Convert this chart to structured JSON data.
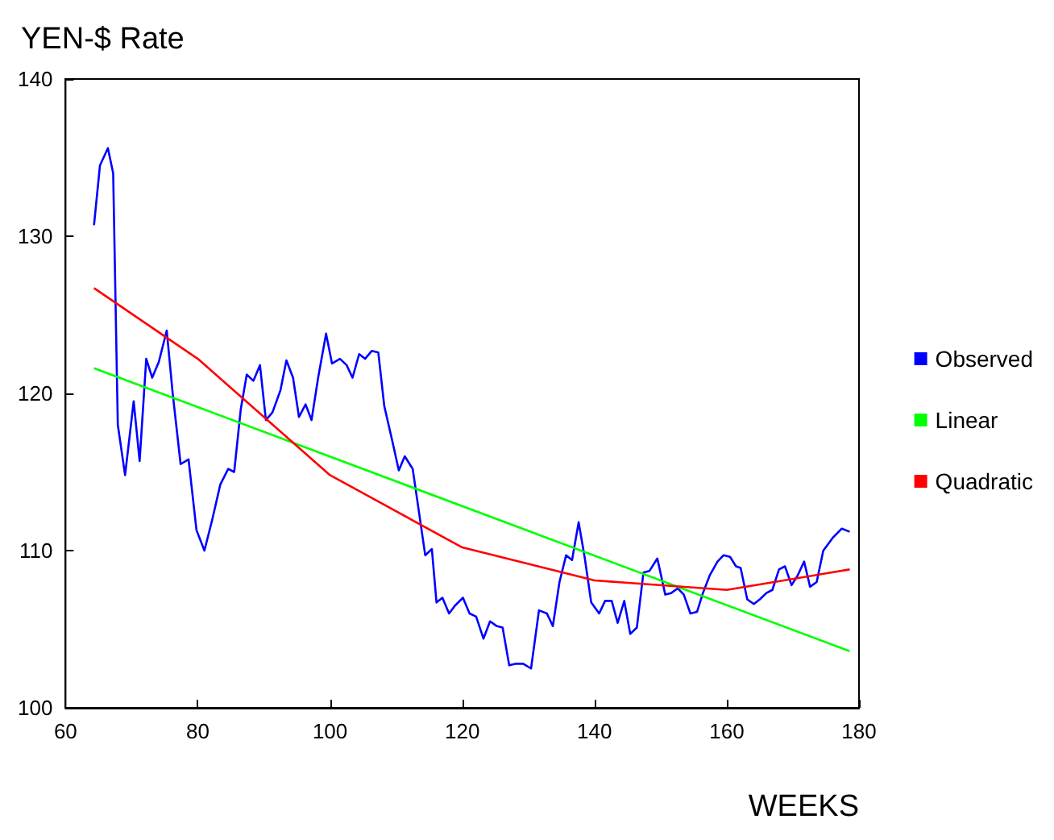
{
  "chart_data": {
    "type": "line",
    "title": "YEN-$ Rate",
    "xlabel": "WEEKS",
    "xlim": [
      60,
      180
    ],
    "xticks": [
      60,
      80,
      100,
      120,
      140,
      160,
      180
    ],
    "ylim": [
      100,
      140
    ],
    "yticks": [
      100,
      110,
      120,
      130,
      140
    ],
    "grid": false,
    "legend": "right",
    "marker": "none",
    "line_style": "solid",
    "series": [
      {
        "name": "Observed",
        "color": "#0000ff",
        "x": [
          64.3,
          65.2,
          66.4,
          67.2,
          67.9,
          69,
          70.3,
          71.2,
          72.2,
          73.1,
          74.1,
          75.3,
          76.2,
          77.4,
          78.6,
          79.8,
          81,
          82.2,
          83.4,
          84.6,
          85.5,
          86.5,
          87.4,
          88.4,
          89.4,
          90.3,
          91.3,
          92.5,
          93.4,
          94.4,
          95.3,
          96.3,
          97.2,
          98.2,
          99.4,
          100.3,
          101.5,
          102.5,
          103.4,
          104.4,
          105.3,
          106.3,
          107.3,
          108.2,
          109.4,
          110.4,
          111.3,
          112.5,
          113.5,
          114.4,
          115.4,
          116.1,
          117,
          118,
          118.9,
          120.1,
          121.1,
          122.1,
          123.2,
          124.2,
          125.2,
          126.1,
          127.1,
          128,
          129.2,
          130.4,
          131.6,
          132.8,
          133.7,
          134.7,
          135.7,
          136.6,
          137.6,
          138.5,
          139.5,
          140.7,
          141.6,
          142.6,
          143.5,
          144.5,
          145.4,
          146.4,
          147.4,
          148.3,
          149.5,
          150.7,
          151.6,
          152.6,
          153.5,
          154.5,
          155.5,
          156.4,
          157.4,
          158.6,
          159.5,
          160.5,
          161.4,
          162.1,
          163.1,
          164.1,
          165,
          166,
          166.9,
          167.9,
          168.8,
          169.8,
          170.7,
          171.7,
          172.6,
          173.6,
          174.6,
          176,
          177.4,
          178.6
        ],
        "values": [
          130.7,
          134.5,
          135.6,
          134,
          118,
          114.8,
          119.5,
          115.7,
          122.2,
          121,
          122,
          124,
          120,
          115.5,
          115.8,
          111.3,
          110,
          112,
          114.2,
          115.2,
          115,
          119,
          121.2,
          120.8,
          121.8,
          118.3,
          118.8,
          120.2,
          122.1,
          121,
          118.5,
          119.3,
          118.3,
          121,
          123.8,
          121.9,
          122.2,
          121.8,
          121,
          122.5,
          122.2,
          122.7,
          122.6,
          119.2,
          117,
          115.1,
          116,
          115.2,
          112.3,
          109.7,
          110.1,
          106.7,
          107,
          106,
          106.5,
          107,
          106,
          105.8,
          104.4,
          105.5,
          105.2,
          105.1,
          102.7,
          102.8,
          102.8,
          102.5,
          106.2,
          106,
          105.2,
          108,
          109.7,
          109.4,
          111.8,
          109.6,
          106.7,
          106,
          106.8,
          106.8,
          105.4,
          106.8,
          104.7,
          105.1,
          108.6,
          108.7,
          109.5,
          107.2,
          107.3,
          107.6,
          107.2,
          106,
          106.1,
          107.3,
          108.4,
          109.3,
          109.7,
          109.6,
          109,
          108.9,
          106.9,
          106.6,
          106.9,
          107.3,
          107.5,
          108.8,
          109,
          107.8,
          108.4,
          109.3,
          107.7,
          108,
          110,
          110.8,
          111.4,
          111.2
        ]
      },
      {
        "name": "Linear",
        "color": "#00ff00",
        "x": [
          64.3,
          178.6
        ],
        "values": [
          121.6,
          103.6
        ]
      },
      {
        "name": "Quadratic",
        "color": "#ff0000",
        "x": [
          64.3,
          80,
          100,
          120,
          140,
          160,
          178.6
        ],
        "values": [
          126.7,
          122.2,
          114.8,
          110.2,
          108.1,
          107.5,
          108.8
        ]
      }
    ]
  }
}
